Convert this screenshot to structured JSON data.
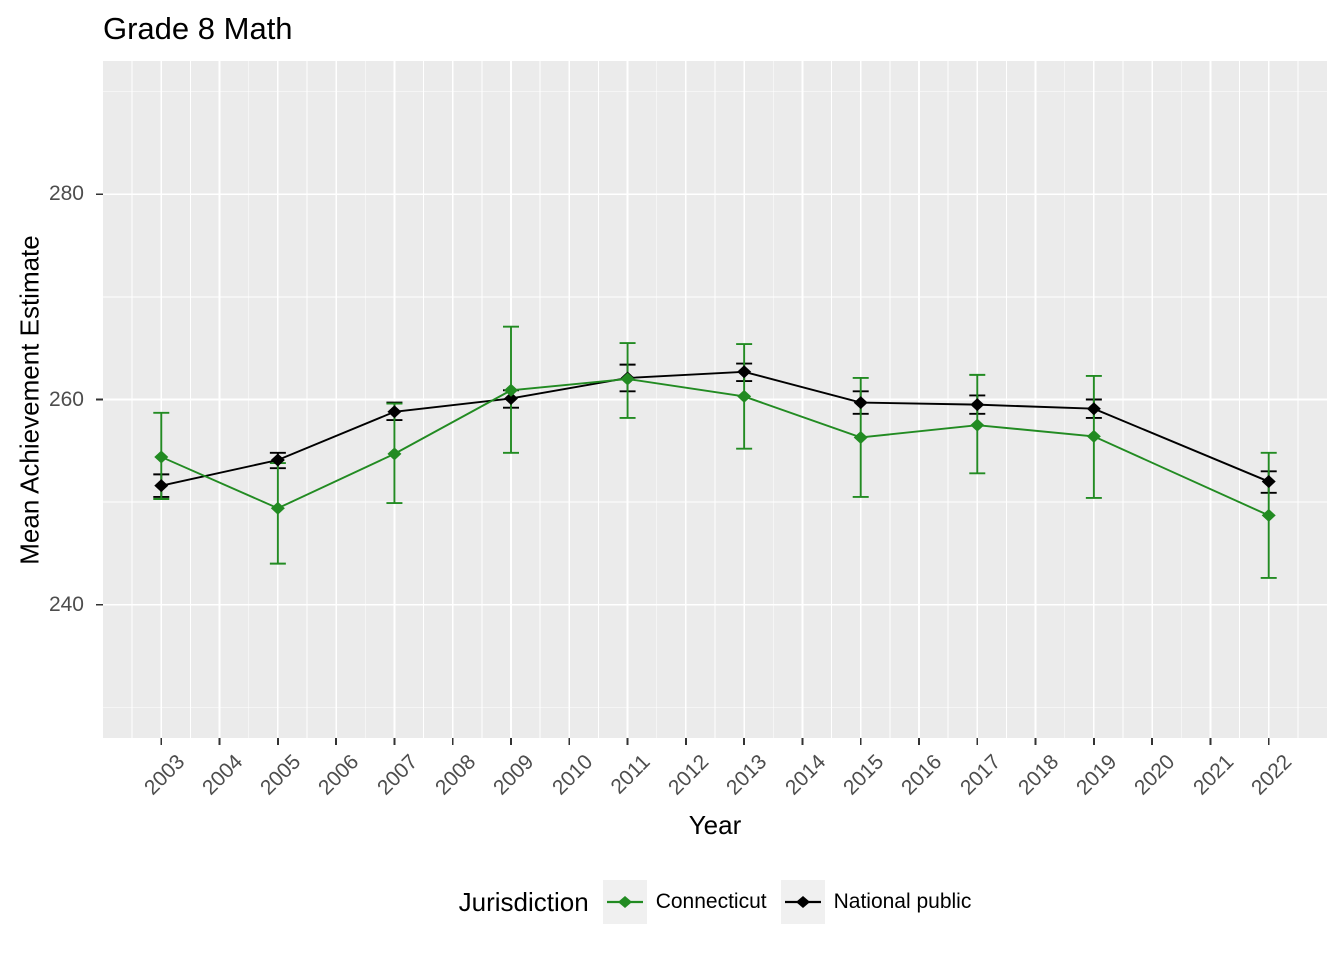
{
  "chart_data": {
    "type": "line",
    "title": "Grade 8 Math",
    "xlabel": "Year",
    "ylabel": "Mean Achievement Estimate",
    "legend_title": "Jurisdiction",
    "legend_position": "bottom",
    "grid": true,
    "panel_bg": "#EBEBEB",
    "grid_color": "#FFFFFF",
    "tick_color": "#333333",
    "tick_label_color": "#4D4D4D",
    "xlim": [
      2002,
      2023
    ],
    "ylim": [
      227,
      293
    ],
    "x_major_ticks": [
      2003,
      2004,
      2005,
      2006,
      2007,
      2008,
      2009,
      2010,
      2011,
      2012,
      2013,
      2014,
      2015,
      2016,
      2017,
      2018,
      2019,
      2020,
      2021,
      2022
    ],
    "y_major_ticks": [
      240,
      260,
      280
    ],
    "y_minor_ticks": [
      230,
      250,
      270,
      290
    ],
    "x": [
      2003,
      2005,
      2007,
      2009,
      2011,
      2013,
      2015,
      2017,
      2019,
      2022
    ],
    "series": [
      {
        "name": "Connecticut",
        "color": "#228B22",
        "marker": "diamond",
        "values": [
          254.4,
          249.4,
          254.7,
          260.9,
          262.0,
          260.3,
          256.3,
          257.5,
          256.4,
          248.7
        ],
        "ci_low": [
          250.3,
          244.0,
          249.9,
          254.8,
          258.2,
          255.2,
          250.5,
          252.8,
          250.4,
          242.6
        ],
        "ci_high": [
          258.7,
          253.8,
          259.6,
          267.1,
          265.5,
          265.4,
          262.1,
          262.4,
          262.3,
          254.8
        ]
      },
      {
        "name": "National public",
        "color": "#000000",
        "marker": "diamond",
        "values": [
          251.6,
          254.1,
          258.8,
          260.1,
          262.1,
          262.7,
          259.7,
          259.5,
          259.1,
          252.0
        ],
        "ci_low": [
          250.5,
          253.3,
          258.0,
          259.2,
          260.8,
          261.8,
          258.6,
          258.6,
          258.2,
          250.9
        ],
        "ci_high": [
          252.7,
          254.8,
          259.7,
          260.9,
          263.4,
          263.5,
          260.8,
          260.4,
          260.0,
          253.0
        ]
      }
    ]
  }
}
